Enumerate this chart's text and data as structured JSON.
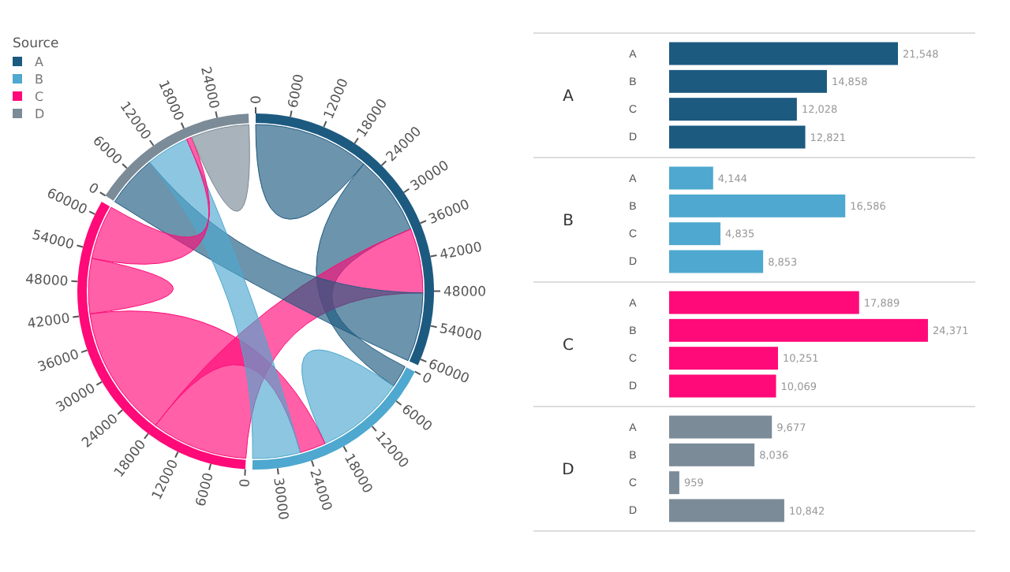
{
  "chart_data": [
    {
      "type": "other",
      "legend_title": "Source",
      "legend": "top left",
      "series": [
        {
          "name": "A",
          "color": "#1d5a80"
        },
        {
          "name": "B",
          "color": "#4ea8cf"
        },
        {
          "name": "C",
          "color": "#ff0a78"
        },
        {
          "name": "D",
          "color": "#7b8b97"
        }
      ],
      "annotations": [
        {
          "text": "0",
          "x": "A"
        },
        {
          "text": "6000",
          "x": "A"
        },
        {
          "text": "12000",
          "x": "A"
        },
        {
          "text": "18000",
          "x": "A"
        },
        {
          "text": "24000",
          "x": "A"
        },
        {
          "text": "30000",
          "x": "A"
        },
        {
          "text": "36000",
          "x": "A"
        },
        {
          "text": "42000",
          "x": "A"
        },
        {
          "text": "48000",
          "x": "A"
        },
        {
          "text": "54000",
          "x": "A"
        },
        {
          "text": "60000",
          "x": "A"
        },
        {
          "text": "0",
          "x": "B"
        },
        {
          "text": "6000",
          "x": "B"
        },
        {
          "text": "12000",
          "x": "B"
        },
        {
          "text": "18000",
          "x": "B"
        },
        {
          "text": "24000",
          "x": "B"
        },
        {
          "text": "30000",
          "x": "B"
        },
        {
          "text": "0",
          "x": "C"
        },
        {
          "text": "6000",
          "x": "C"
        },
        {
          "text": "12000",
          "x": "C"
        },
        {
          "text": "18000",
          "x": "C"
        },
        {
          "text": "24000",
          "x": "C"
        },
        {
          "text": "30000",
          "x": "C"
        },
        {
          "text": "36000",
          "x": "C"
        },
        {
          "text": "42000",
          "x": "C"
        },
        {
          "text": "48000",
          "x": "C"
        },
        {
          "text": "54000",
          "x": "C"
        },
        {
          "text": "60000",
          "x": "C"
        },
        {
          "text": "0",
          "x": "D"
        },
        {
          "text": "6000",
          "x": "D"
        },
        {
          "text": "12000",
          "x": "D"
        },
        {
          "text": "18000",
          "x": "D"
        },
        {
          "text": "24000",
          "x": "D"
        }
      ]
    },
    {
      "type": "bar",
      "orientation": "horizontal",
      "title": "A",
      "categories": [
        "A",
        "B",
        "C",
        "D"
      ],
      "values": [
        21548,
        14858,
        12028,
        12821
      ],
      "color": "#1d5a80",
      "value_labels": [
        "21,548",
        "14,858",
        "12,028",
        "12,821"
      ]
    },
    {
      "type": "bar",
      "orientation": "horizontal",
      "title": "B",
      "categories": [
        "A",
        "B",
        "C",
        "D"
      ],
      "values": [
        4144,
        16586,
        4835,
        8853
      ],
      "color": "#4ea8cf",
      "value_labels": [
        "4,144",
        "16,586",
        "4,835",
        "8,853"
      ]
    },
    {
      "type": "bar",
      "orientation": "horizontal",
      "title": "C",
      "categories": [
        "A",
        "B",
        "C",
        "D"
      ],
      "values": [
        17889,
        24371,
        10251,
        10069
      ],
      "color": "#ff0a78",
      "value_labels": [
        "17,889",
        "24,371",
        "10,251",
        "10,069"
      ]
    },
    {
      "type": "bar",
      "orientation": "horizontal",
      "title": "D",
      "categories": [
        "A",
        "B",
        "C",
        "D"
      ],
      "values": [
        9677,
        8036,
        959,
        10842
      ],
      "color": "#7b8b97",
      "value_labels": [
        "9,677",
        "8,036",
        "959",
        "10,842"
      ]
    }
  ]
}
